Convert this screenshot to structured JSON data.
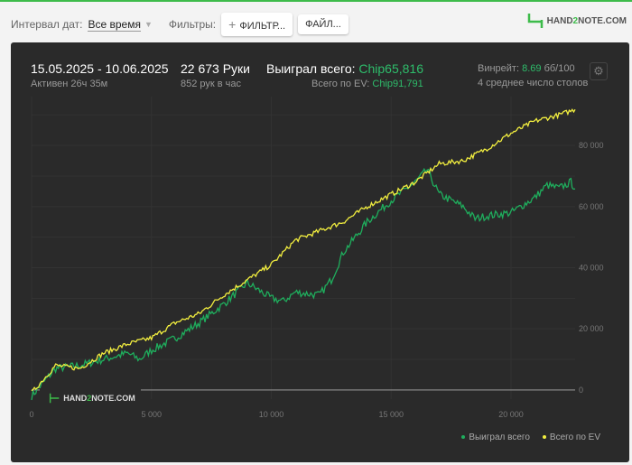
{
  "toolbar": {
    "interval_label": "Интервал дат:",
    "interval_value": "Все время",
    "filters_label": "Фильтры:",
    "filter_button": "ФИЛЬТР...",
    "file_button": "ФАЙЛ...",
    "brand_a": "HAND",
    "brand_b": "2",
    "brand_c": "NOTE.COM"
  },
  "summary": {
    "date_range": "15.05.2025 - 10.06.2025",
    "active": "Активен 26ч 35м",
    "hands": "22 673 Руки",
    "hands_per_hour": "852 рук в час",
    "won_label": "Выиграл всего:",
    "won_value": "Chip65,816",
    "ev_label": "Всего по EV:",
    "ev_value": "Chip91,791",
    "winrate_label": "Винрейт:",
    "winrate_value": "8.69",
    "winrate_unit": "бб/100",
    "tables": "4 среднее число столов"
  },
  "watermark": {
    "a": "HAND",
    "b": "2",
    "c": "NOTE.COM"
  },
  "colors": {
    "won": "#1fae5d",
    "ev": "#f2ee3f",
    "accent": "#3dbb4a"
  },
  "chart_data": {
    "type": "line",
    "xlim": [
      0,
      22673
    ],
    "ylim": [
      -3000,
      96000
    ],
    "x_ticks": [
      0,
      5000,
      10000,
      15000,
      20000
    ],
    "x_tick_labels": [
      "0",
      "5 000",
      "10 000",
      "15 000",
      "20 000"
    ],
    "y_ticks": [
      0,
      20000,
      40000,
      60000,
      80000
    ],
    "y_tick_labels": [
      "0",
      "20 000",
      "40 000",
      "60 000",
      "80 000"
    ],
    "legend": [
      "Выиграл всего",
      "Всего по EV"
    ],
    "legend_position": "bottom-right",
    "series": [
      {
        "name": "Выиграл всего",
        "x": [
          0,
          1000,
          2000,
          3000,
          4000,
          4500,
          5000,
          6000,
          7000,
          8000,
          9000,
          10000,
          10500,
          11000,
          12000,
          12500,
          13000,
          14000,
          15000,
          16000,
          16500,
          17000,
          18000,
          18500,
          19000,
          20000,
          21000,
          21500,
          22000,
          22500,
          22673
        ],
        "y": [
          -2000,
          7000,
          8000,
          10000,
          12000,
          10000,
          13000,
          17000,
          22000,
          28000,
          35000,
          30000,
          29000,
          32000,
          31000,
          36000,
          45000,
          55000,
          62000,
          68000,
          72000,
          64000,
          60000,
          56000,
          57000,
          58000,
          63000,
          67000,
          66000,
          68000,
          65816
        ]
      },
      {
        "name": "Всего по EV",
        "x": [
          0,
          1000,
          2000,
          3000,
          4000,
          5000,
          6000,
          7000,
          8000,
          9000,
          10000,
          11000,
          12000,
          13000,
          14000,
          15000,
          16000,
          17000,
          18000,
          19000,
          20000,
          21000,
          22000,
          22673
        ],
        "y": [
          -1000,
          8000,
          7000,
          12000,
          15000,
          17000,
          22000,
          25000,
          31000,
          36000,
          41000,
          49000,
          52000,
          55000,
          60000,
          64000,
          68000,
          74000,
          75000,
          79000,
          84000,
          88000,
          90000,
          91791
        ]
      }
    ]
  }
}
